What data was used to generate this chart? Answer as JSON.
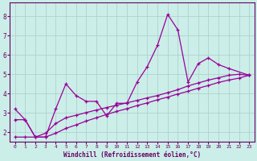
{
  "xlabel": "Windchill (Refroidissement éolien,°C)",
  "background_color": "#cceee8",
  "grid_color": "#aacccc",
  "line_color": "#990099",
  "xlim": [
    -0.5,
    23.5
  ],
  "ylim": [
    1.5,
    8.7
  ],
  "xticks": [
    0,
    1,
    2,
    3,
    4,
    5,
    6,
    7,
    8,
    9,
    10,
    11,
    12,
    13,
    14,
    15,
    16,
    17,
    18,
    19,
    20,
    21,
    22,
    23
  ],
  "yticks": [
    2,
    3,
    4,
    5,
    6,
    7,
    8
  ],
  "line1_x": [
    0,
    1,
    2,
    3,
    4,
    5,
    6,
    7,
    8,
    9,
    10,
    11,
    12,
    13,
    14,
    15,
    16,
    17,
    18,
    19,
    20,
    21,
    23
  ],
  "line1_y": [
    3.2,
    2.65,
    1.75,
    1.75,
    3.2,
    4.5,
    3.9,
    3.6,
    3.6,
    2.85,
    3.5,
    3.5,
    4.6,
    5.4,
    6.5,
    8.1,
    7.3,
    4.6,
    5.55,
    5.85,
    5.5,
    5.3,
    4.95
  ],
  "line2_x": [
    0,
    1,
    2,
    3,
    4,
    5,
    6,
    7,
    8,
    9,
    10,
    11,
    12,
    13,
    14,
    15,
    16,
    17,
    18,
    19,
    20,
    21,
    22,
    23
  ],
  "line2_y": [
    2.65,
    2.65,
    1.75,
    1.95,
    2.45,
    2.75,
    2.88,
    3.02,
    3.15,
    3.28,
    3.4,
    3.52,
    3.65,
    3.78,
    3.9,
    4.05,
    4.2,
    4.4,
    4.55,
    4.7,
    4.82,
    4.95,
    5.0,
    4.95
  ],
  "line3_x": [
    0,
    1,
    2,
    3,
    4,
    5,
    6,
    7,
    8,
    9,
    10,
    11,
    12,
    13,
    14,
    15,
    16,
    17,
    18,
    19,
    20,
    21,
    22,
    23
  ],
  "line3_y": [
    1.75,
    1.75,
    1.75,
    1.75,
    1.95,
    2.2,
    2.38,
    2.58,
    2.75,
    2.92,
    3.08,
    3.22,
    3.38,
    3.52,
    3.68,
    3.82,
    3.98,
    4.12,
    4.28,
    4.42,
    4.58,
    4.7,
    4.8,
    4.95
  ]
}
